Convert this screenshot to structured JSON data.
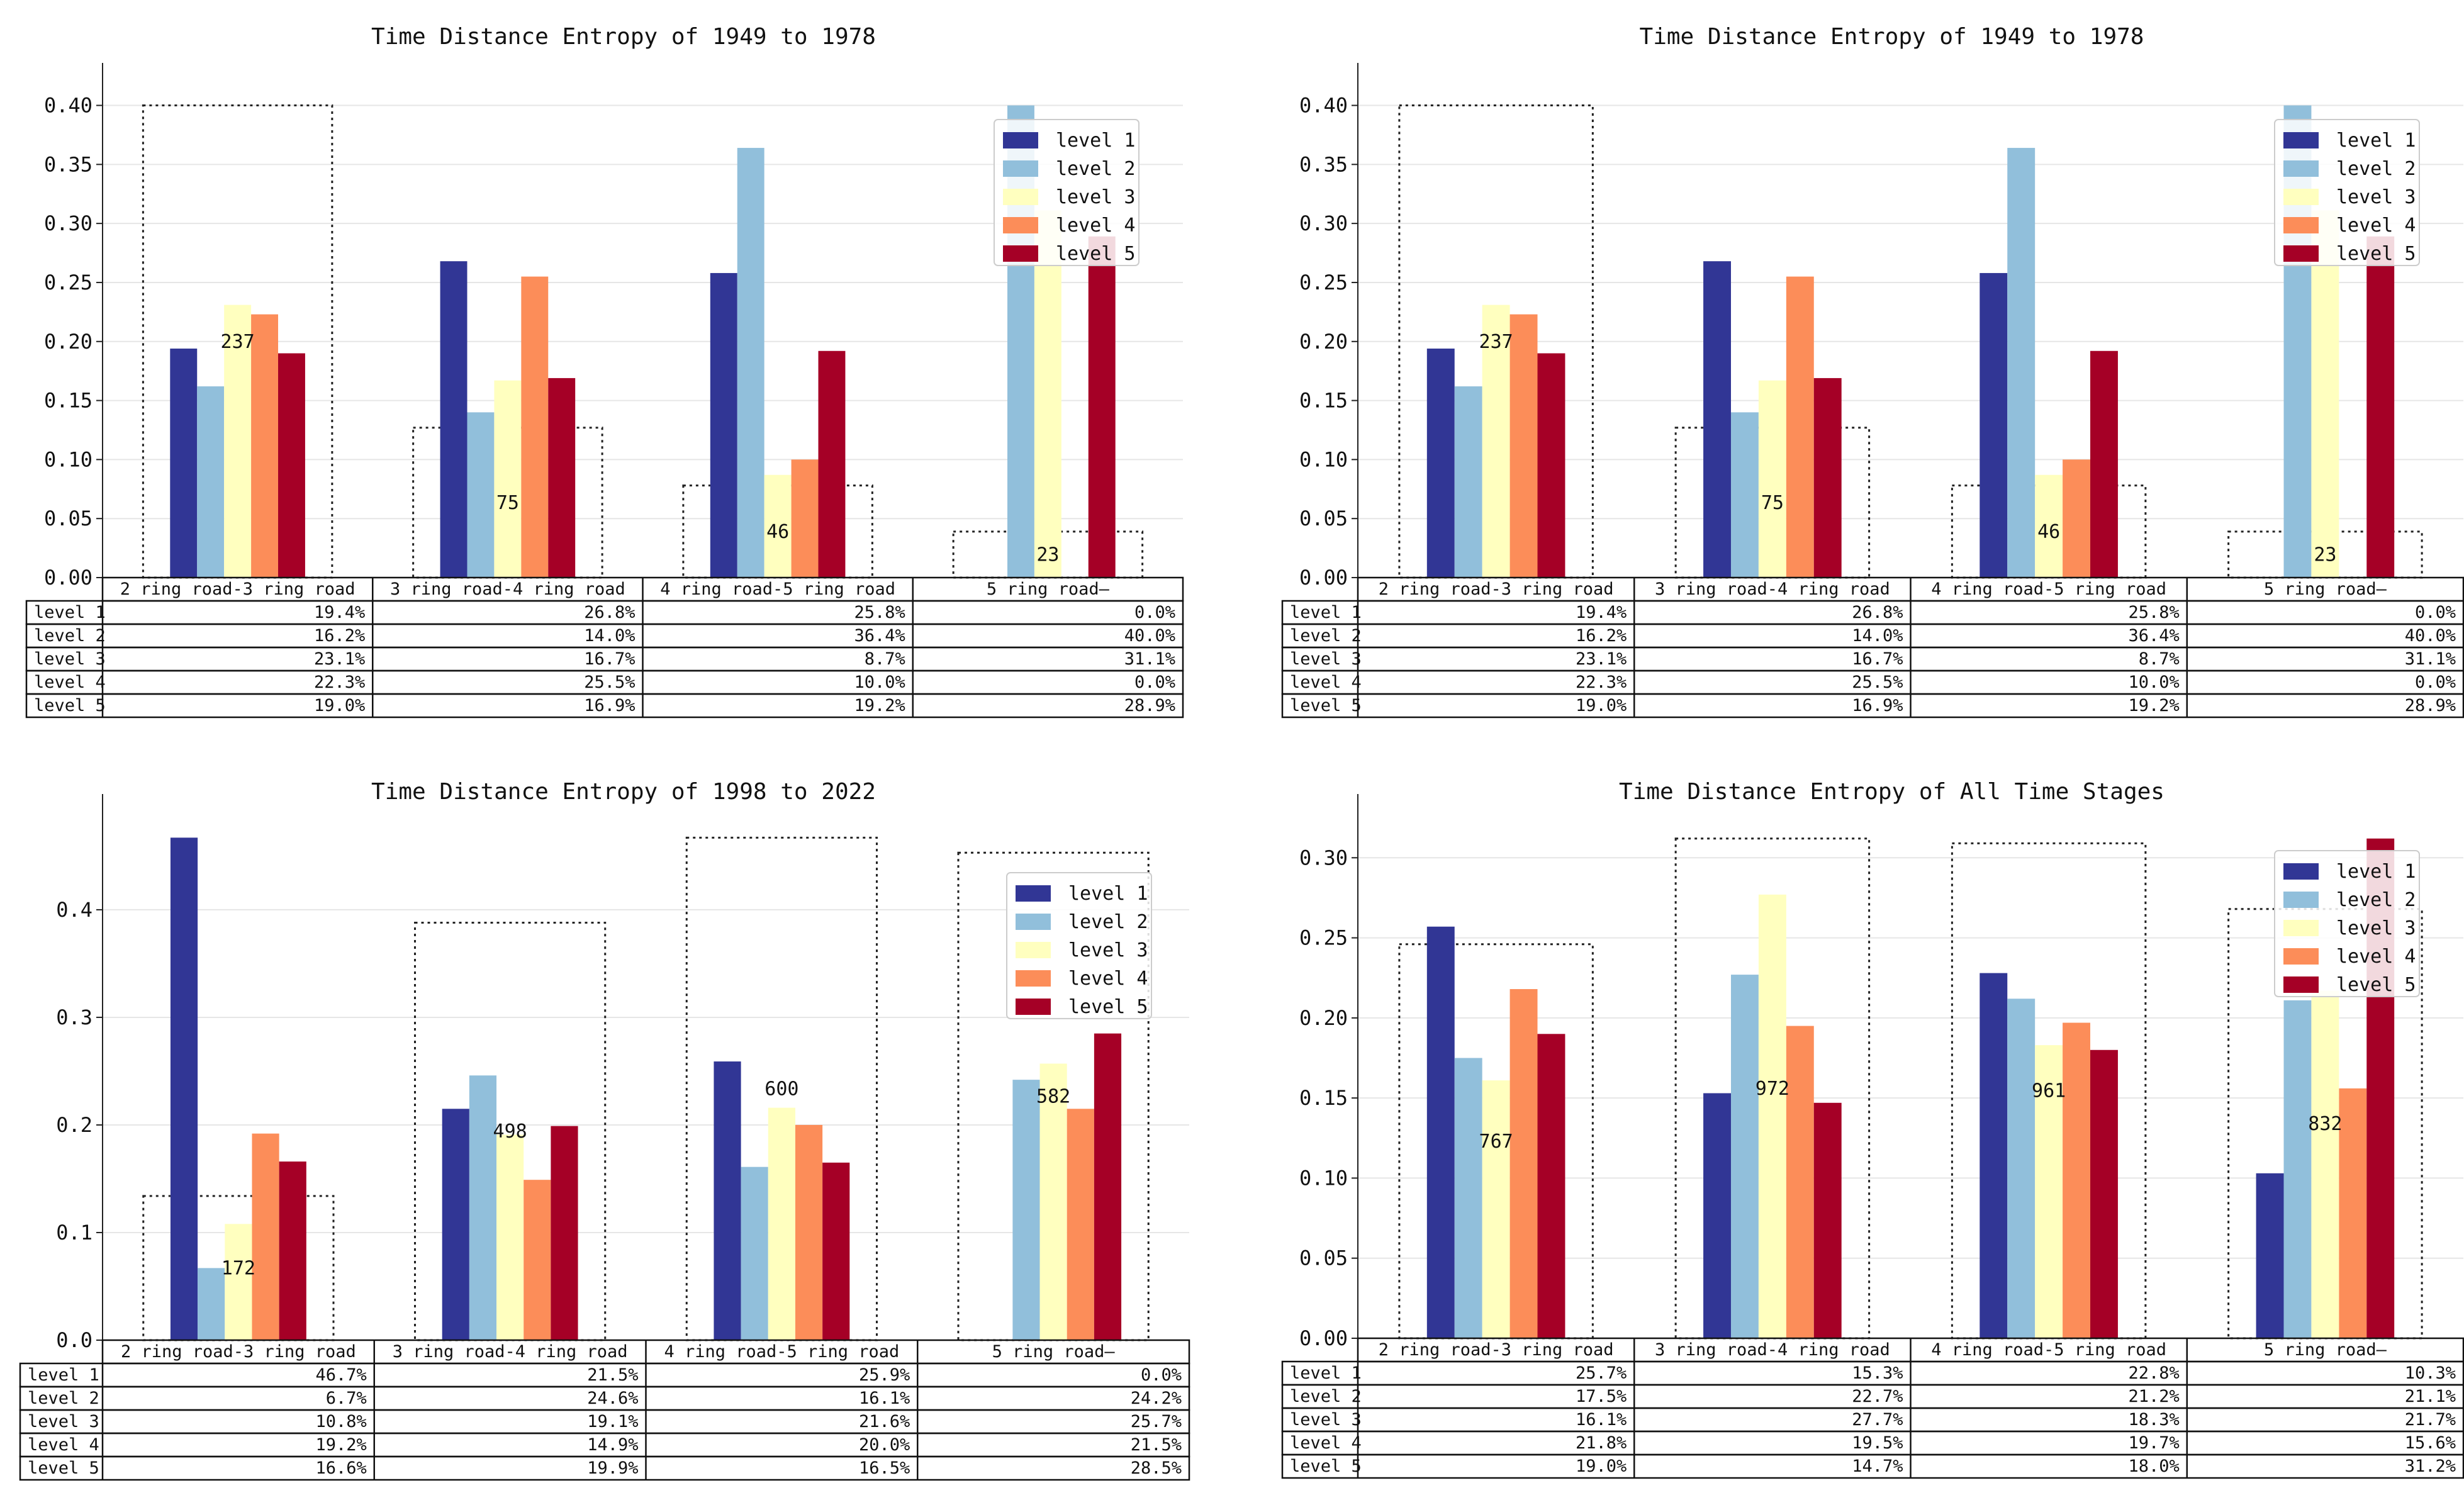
{
  "colors": {
    "level 1": "#313695",
    "level 2": "#91bfdb",
    "level 3": "#ffffbf",
    "level 4": "#fc8d59",
    "level 5": "#a50026"
  },
  "chart_data": [
    {
      "type": "bar",
      "title": "Time Distance Entropy of 1949 to 1978",
      "categories": [
        "2 ring road-3 ring road",
        "3 ring road-4 ring road",
        "4 ring road-5 ring road",
        "5 ring road—"
      ],
      "series": [
        {
          "name": "level 1",
          "values": [
            0.194,
            0.268,
            0.258,
            0.0
          ]
        },
        {
          "name": "level 2",
          "values": [
            0.162,
            0.14,
            0.364,
            0.4
          ]
        },
        {
          "name": "level 3",
          "values": [
            0.231,
            0.167,
            0.087,
            0.311
          ]
        },
        {
          "name": "level 4",
          "values": [
            0.223,
            0.255,
            0.1,
            0.0
          ]
        },
        {
          "name": "level 5",
          "values": [
            0.19,
            0.169,
            0.192,
            0.289
          ]
        }
      ],
      "table": [
        [
          "19.4%",
          "26.8%",
          "25.8%",
          "0.0%"
        ],
        [
          "16.2%",
          "14.0%",
          "36.4%",
          "40.0%"
        ],
        [
          "23.1%",
          "16.7%",
          "8.7%",
          "31.1%"
        ],
        [
          "22.3%",
          "25.5%",
          "10.0%",
          "0.0%"
        ],
        [
          "19.0%",
          "16.9%",
          "19.2%",
          "28.9%"
        ]
      ],
      "counts": [
        237,
        75,
        46,
        23
      ],
      "box_tops": [
        0.4,
        0.127,
        0.078,
        0.039
      ],
      "ylim": [
        0,
        0.42
      ],
      "yticks": [
        0.0,
        0.05,
        0.1,
        0.15,
        0.2,
        0.25,
        0.3,
        0.35,
        0.4
      ],
      "ytick_labels": [
        "0.00",
        "0.05",
        "0.10",
        "0.15",
        "0.20",
        "0.25",
        "0.30",
        "0.35",
        "0.40"
      ],
      "legend": "top-right"
    },
    {
      "type": "bar",
      "title": "Time Distance Entropy of 1949 to 1978",
      "categories": [
        "2 ring road-3 ring road",
        "3 ring road-4 ring road",
        "4 ring road-5 ring road",
        "5 ring road—"
      ],
      "series": [
        {
          "name": "level 1",
          "values": [
            0.194,
            0.268,
            0.258,
            0.0
          ]
        },
        {
          "name": "level 2",
          "values": [
            0.162,
            0.14,
            0.364,
            0.4
          ]
        },
        {
          "name": "level 3",
          "values": [
            0.231,
            0.167,
            0.087,
            0.311
          ]
        },
        {
          "name": "level 4",
          "values": [
            0.223,
            0.255,
            0.1,
            0.0
          ]
        },
        {
          "name": "level 5",
          "values": [
            0.19,
            0.169,
            0.192,
            0.289
          ]
        }
      ],
      "table": [
        [
          "19.4%",
          "26.8%",
          "25.8%",
          "0.0%"
        ],
        [
          "16.2%",
          "14.0%",
          "36.4%",
          "40.0%"
        ],
        [
          "23.1%",
          "16.7%",
          "8.7%",
          "31.1%"
        ],
        [
          "22.3%",
          "25.5%",
          "10.0%",
          "0.0%"
        ],
        [
          "19.0%",
          "16.9%",
          "19.2%",
          "28.9%"
        ]
      ],
      "counts": [
        237,
        75,
        46,
        23
      ],
      "box_tops": [
        0.4,
        0.127,
        0.078,
        0.039
      ],
      "ylim": [
        0,
        0.42
      ],
      "yticks": [
        0.0,
        0.05,
        0.1,
        0.15,
        0.2,
        0.25,
        0.3,
        0.35,
        0.4
      ],
      "ytick_labels": [
        "0.00",
        "0.05",
        "0.10",
        "0.15",
        "0.20",
        "0.25",
        "0.30",
        "0.35",
        "0.40"
      ],
      "legend": "top-right"
    },
    {
      "type": "bar",
      "title": "Time Distance Entropy of 1998 to 2022",
      "categories": [
        "2 ring road-3 ring road",
        "3 ring road-4 ring road",
        "4 ring road-5 ring road",
        "5 ring road—"
      ],
      "series": [
        {
          "name": "level 1",
          "values": [
            0.467,
            0.215,
            0.259,
            0.0
          ]
        },
        {
          "name": "level 2",
          "values": [
            0.067,
            0.246,
            0.161,
            0.242
          ]
        },
        {
          "name": "level 3",
          "values": [
            0.108,
            0.191,
            0.216,
            0.257
          ]
        },
        {
          "name": "level 4",
          "values": [
            0.192,
            0.149,
            0.2,
            0.215
          ]
        },
        {
          "name": "level 5",
          "values": [
            0.166,
            0.199,
            0.165,
            0.285
          ]
        }
      ],
      "table": [
        [
          "46.7%",
          "21.5%",
          "25.9%",
          "0.0%"
        ],
        [
          "6.7%",
          "24.6%",
          "16.1%",
          "24.2%"
        ],
        [
          "10.8%",
          "19.1%",
          "21.6%",
          "25.7%"
        ],
        [
          "19.2%",
          "14.9%",
          "20.0%",
          "21.5%"
        ],
        [
          "16.6%",
          "19.9%",
          "16.5%",
          "28.5%"
        ]
      ],
      "counts": [
        172,
        498,
        600,
        582
      ],
      "box_tops": [
        0.134,
        0.388,
        0.467,
        0.453
      ],
      "ylim": [
        0,
        0.49
      ],
      "yticks": [
        0.0,
        0.1,
        0.2,
        0.3,
        0.4
      ],
      "ytick_labels": [
        "0.0",
        "0.1",
        "0.2",
        "0.3",
        "0.4"
      ],
      "legend": "top-right"
    },
    {
      "type": "bar",
      "title": "Time Distance Entropy of All Time Stages",
      "categories": [
        "2 ring road-3 ring road",
        "3 ring road-4 ring road",
        "4 ring road-5 ring road",
        "5 ring road—"
      ],
      "series": [
        {
          "name": "level 1",
          "values": [
            0.257,
            0.153,
            0.228,
            0.103
          ]
        },
        {
          "name": "level 2",
          "values": [
            0.175,
            0.227,
            0.212,
            0.211
          ]
        },
        {
          "name": "level 3",
          "values": [
            0.161,
            0.277,
            0.183,
            0.217
          ]
        },
        {
          "name": "level 4",
          "values": [
            0.218,
            0.195,
            0.197,
            0.156
          ]
        },
        {
          "name": "level 5",
          "values": [
            0.19,
            0.147,
            0.18,
            0.312
          ]
        }
      ],
      "table": [
        [
          "25.7%",
          "15.3%",
          "22.8%",
          "10.3%"
        ],
        [
          "17.5%",
          "22.7%",
          "21.2%",
          "21.1%"
        ],
        [
          "16.1%",
          "27.7%",
          "18.3%",
          "21.7%"
        ],
        [
          "21.8%",
          "19.5%",
          "19.7%",
          "15.6%"
        ],
        [
          "19.0%",
          "14.7%",
          "18.0%",
          "31.2%"
        ]
      ],
      "counts": [
        767,
        972,
        961,
        832
      ],
      "box_tops": [
        0.246,
        0.312,
        0.309,
        0.268
      ],
      "ylim": [
        0,
        0.328
      ],
      "yticks": [
        0.0,
        0.05,
        0.1,
        0.15,
        0.2,
        0.25,
        0.3
      ],
      "ytick_labels": [
        "0.00",
        "0.05",
        "0.10",
        "0.15",
        "0.20",
        "0.25",
        "0.30"
      ],
      "legend": "top-right"
    }
  ]
}
